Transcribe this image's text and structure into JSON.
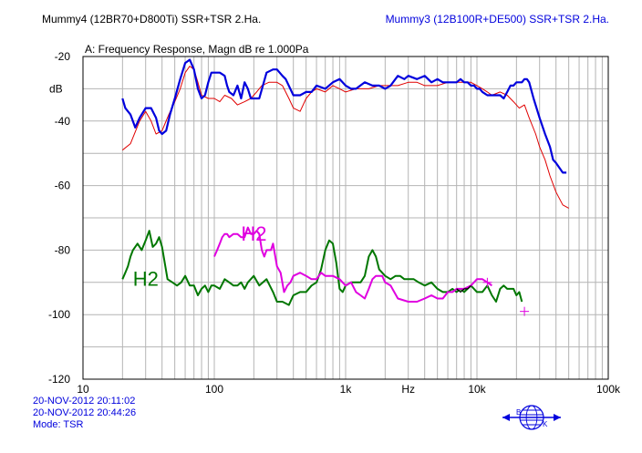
{
  "header": {
    "left_title": "Mummy4 (12BR70+D800Ti)   SSR+TSR 2.Ha.",
    "right_title": "Mummy3 (12B100R+DE500)   SSR+TSR 2.Ha."
  },
  "footer": {
    "date1": "20-NOV-2012 20:11:02",
    "date2": "20-NOV-2012 20:44:26",
    "mode": "Mode: TSR"
  },
  "logo": {
    "letters": [
      "B",
      "K"
    ],
    "color": "#0000dd"
  },
  "colors": {
    "grid": "#b4b4b4",
    "frame": "#000000",
    "mummy3": "#0000dd",
    "mummy3_h2": "#e000e0",
    "mummy4": "#e00000",
    "mummy4_h2": "#007700"
  },
  "chart_data": {
    "type": "line",
    "title": "A: Frequency Response, Magn dB re 1.000Pa",
    "xlabel": "Hz",
    "ylabel": "dB",
    "x_scale": "log",
    "xlim": [
      10,
      100000
    ],
    "ylim": [
      -120,
      -20
    ],
    "x_ticks": [
      {
        "value": 10,
        "label": "10"
      },
      {
        "value": 100,
        "label": "100"
      },
      {
        "value": 1000,
        "label": "1k"
      },
      {
        "value": 10000,
        "label": "10k"
      },
      {
        "value": 100000,
        "label": "100k"
      }
    ],
    "y_ticks": [
      -20,
      -40,
      -60,
      -80,
      -100,
      -120
    ],
    "grid": true,
    "annotations": [
      {
        "text": "H2",
        "x": 24,
        "y": -91,
        "color": "#007700"
      },
      {
        "text": "H2",
        "x": 160,
        "y": -77,
        "color": "#e000e0"
      }
    ],
    "series": [
      {
        "color": "#e00000",
        "width": 1,
        "x": [
          20,
          23,
          27,
          30,
          33,
          36,
          40,
          45,
          50,
          55,
          60,
          65,
          70,
          75,
          80,
          90,
          100,
          110,
          120,
          135,
          150,
          170,
          190,
          210,
          230,
          260,
          300,
          330,
          370,
          400,
          450,
          500,
          550,
          600,
          700,
          800,
          900,
          1000,
          1200,
          1500,
          1800,
          2000,
          2500,
          3000,
          3500,
          4000,
          5000,
          6000,
          7000,
          8000,
          9000,
          10000,
          11000,
          12000,
          13000,
          15000,
          17000,
          19000,
          21000,
          23000,
          25000,
          28000,
          30000,
          33000,
          36000,
          40000,
          45000,
          50000
        ],
        "y": [
          -49,
          -47,
          -40,
          -37,
          -40,
          -44,
          -43,
          -38,
          -34,
          -30,
          -25,
          -23,
          -24,
          -28,
          -32,
          -33,
          -33,
          -34,
          -32,
          -33,
          -35,
          -34,
          -33,
          -31,
          -29,
          -28,
          -28,
          -29,
          -33,
          -36,
          -37,
          -33,
          -31,
          -30,
          -31,
          -29,
          -30,
          -31,
          -30,
          -30,
          -29,
          -29,
          -29,
          -28,
          -28,
          -29,
          -29,
          -28,
          -28,
          -28,
          -28,
          -29,
          -30,
          -31,
          -32,
          -31,
          -32,
          -34,
          -36,
          -35,
          -39,
          -44,
          -48,
          -52,
          -57,
          -62,
          -66,
          -67
        ]
      },
      {
        "color": "#0000dd",
        "width": 2.2,
        "x": [
          20,
          21,
          23,
          25,
          27,
          30,
          33,
          36,
          38,
          40,
          43,
          46,
          50,
          55,
          60,
          65,
          70,
          75,
          80,
          85,
          90,
          95,
          100,
          110,
          120,
          125,
          130,
          140,
          150,
          160,
          170,
          180,
          190,
          200,
          220,
          250,
          280,
          300,
          330,
          350,
          400,
          450,
          500,
          550,
          600,
          700,
          800,
          900,
          1000,
          1100,
          1200,
          1400,
          1600,
          1800,
          2000,
          2200,
          2500,
          2800,
          3000,
          3500,
          4000,
          4500,
          5000,
          5500,
          6000,
          6500,
          7000,
          7500,
          8000,
          8500,
          9000,
          9500,
          10000,
          10500,
          11000,
          12000,
          13000,
          14000,
          15000,
          16000,
          17000,
          18000,
          19000,
          20000,
          21000,
          22000,
          23000,
          24000,
          25000,
          27000,
          30000,
          33000,
          36000,
          38000,
          40000,
          45000,
          48000
        ],
        "y": [
          -33,
          -36,
          -38,
          -42,
          -39,
          -36,
          -36,
          -39,
          -43,
          -44,
          -43,
          -38,
          -33,
          -27,
          -22,
          -21,
          -24,
          -30,
          -33,
          -32,
          -28,
          -25,
          -25,
          -25,
          -26,
          -29,
          -31,
          -32,
          -29,
          -33,
          -28,
          -30,
          -33,
          -33,
          -33,
          -25,
          -24,
          -24,
          -26,
          -27,
          -32,
          -32,
          -31,
          -31,
          -29,
          -30,
          -28,
          -27,
          -29,
          -30,
          -30,
          -28,
          -29,
          -29,
          -30,
          -29,
          -26,
          -27,
          -26,
          -27,
          -26,
          -28,
          -27,
          -28,
          -28,
          -28,
          -28,
          -27,
          -28,
          -28,
          -29,
          -29,
          -30,
          -30,
          -31,
          -32,
          -32,
          -32,
          -32,
          -33,
          -31,
          -29,
          -29,
          -28,
          -28,
          -28,
          -27,
          -27,
          -28,
          -33,
          -39,
          -44,
          -48,
          -52,
          -53,
          -56,
          -56
        ]
      },
      {
        "color": "#007700",
        "width": 2,
        "x": [
          20,
          21,
          22,
          23,
          24,
          26,
          28,
          30,
          32,
          34,
          36,
          38,
          40,
          44,
          48,
          52,
          56,
          60,
          65,
          70,
          75,
          80,
          85,
          90,
          95,
          100,
          110,
          120,
          130,
          140,
          150,
          160,
          170,
          180,
          200,
          220,
          250,
          280,
          300,
          330,
          370,
          400,
          450,
          500,
          550,
          600,
          650,
          700,
          750,
          800,
          850,
          900,
          950,
          1000,
          1100,
          1200,
          1300,
          1400,
          1500,
          1600,
          1700,
          1800,
          2000,
          2200,
          2400,
          2600,
          2800,
          3000,
          3300,
          3600,
          4000,
          4500,
          5000,
          5500,
          6000,
          6500,
          7000,
          7500,
          8000,
          9000,
          10000,
          11000,
          12000,
          13000,
          14000,
          15000,
          16000,
          17000,
          18000,
          19000,
          20000,
          21000,
          22000
        ],
        "y": [
          -89,
          -87,
          -85,
          -82,
          -80,
          -78,
          -80,
          -77,
          -74,
          -79,
          -78,
          -76,
          -79,
          -89,
          -90,
          -91,
          -90,
          -88,
          -91,
          -91,
          -94,
          -92,
          -91,
          -93,
          -91,
          -91,
          -92,
          -89,
          -90,
          -91,
          -91,
          -90,
          -92,
          -90,
          -88,
          -91,
          -89,
          -93,
          -96,
          -96,
          -97,
          -94,
          -93,
          -93,
          -91,
          -90,
          -86,
          -80,
          -77,
          -78,
          -84,
          -92,
          -93,
          -91,
          -90,
          -90,
          -90,
          -88,
          -82,
          -80,
          -82,
          -86,
          -88,
          -89,
          -88,
          -88,
          -89,
          -89,
          -89,
          -90,
          -91,
          -90,
          -92,
          -93,
          -93,
          -92,
          -93,
          -92,
          -93,
          -91,
          -93,
          -93,
          -91,
          -94,
          -96,
          -92,
          -91,
          -92,
          -92,
          -92,
          -94,
          -93,
          -96
        ]
      },
      {
        "color": "#e000e0",
        "width": 2,
        "x": [
          100,
          105,
          110,
          115,
          120,
          125,
          130,
          140,
          150,
          160,
          170,
          180,
          190,
          200,
          210,
          220,
          230,
          240,
          250,
          270,
          280,
          300,
          320,
          340,
          360,
          380,
          400,
          450,
          500,
          550,
          600,
          650,
          700,
          800,
          900,
          1000,
          1100,
          1200,
          1300,
          1400,
          1500,
          1600,
          1700,
          1800,
          1900,
          2000,
          2200,
          2500,
          3000,
          3500,
          4000,
          4500,
          5000,
          5500,
          6000,
          6500,
          7000,
          8000,
          9000,
          10000,
          11000,
          12000,
          13000
        ],
        "y": [
          -82,
          -80,
          -78,
          -76,
          -75,
          -75,
          -76,
          -75,
          -75,
          -76,
          -76,
          -73,
          -75,
          -75,
          -74,
          -75,
          -80,
          -82,
          -80,
          -80,
          -78,
          -85,
          -87,
          -93,
          -91,
          -90,
          -88,
          -87,
          -88,
          -89,
          -89,
          -87,
          -88,
          -88,
          -89,
          -91,
          -90,
          -93,
          -94,
          -95,
          -92,
          -89,
          -88,
          -88,
          -88,
          -90,
          -91,
          -95,
          -96,
          -96,
          -95,
          -94,
          -95,
          -95,
          -93,
          -93,
          -92,
          -92,
          -91,
          -89,
          -89,
          -90,
          -91
        ]
      },
      {
        "color": "#000000",
        "width": 1.2,
        "x": [
          7000,
          7500,
          8000,
          8500,
          9000
        ],
        "y": [
          -92,
          -93,
          -92,
          -92,
          -91
        ]
      }
    ]
  }
}
